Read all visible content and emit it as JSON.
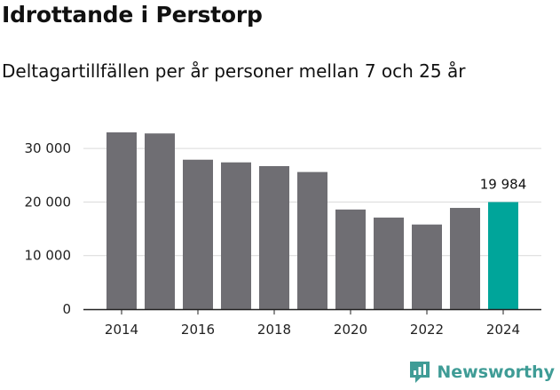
{
  "title": "Idrottande i Perstorp",
  "subtitle": "Deltagartillfällen per år personer mellan 7 och 25 år",
  "brand": "Newsworthy",
  "colors": {
    "bar": "#6f6e73",
    "highlight": "#00a59a",
    "grid": "#d9d9d9",
    "axis": "#222222",
    "brand": "#3f9c96"
  },
  "chart_data": {
    "type": "bar",
    "title": "Idrottande i Perstorp",
    "subtitle": "Deltagartillfällen per år personer mellan 7 och 25 år",
    "xlabel": "",
    "ylabel": "",
    "categories": [
      "2014",
      "2015",
      "2016",
      "2017",
      "2018",
      "2019",
      "2020",
      "2021",
      "2022",
      "2023",
      "2024"
    ],
    "values": [
      33000,
      32800,
      27900,
      27400,
      26700,
      25600,
      18600,
      17100,
      15800,
      18900,
      19984
    ],
    "highlight_index": 10,
    "ylim": [
      0,
      33000
    ],
    "yticks": [
      0,
      10000,
      20000,
      30000
    ],
    "ytick_labels": [
      "0",
      "10 000",
      "20 000",
      "30 000"
    ],
    "xtick_labels": [
      "2014",
      "",
      "2016",
      "",
      "2018",
      "",
      "2020",
      "",
      "2022",
      "",
      "2024"
    ],
    "data_labels": [
      {
        "index": 10,
        "text": "19 984"
      }
    ],
    "grid": true
  }
}
